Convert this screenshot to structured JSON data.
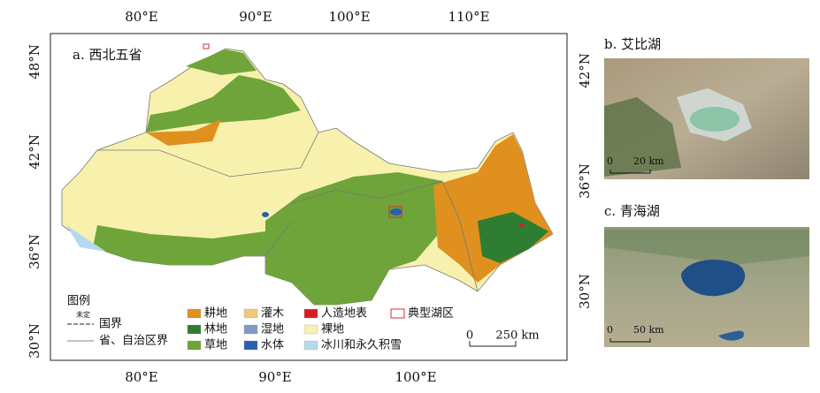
{
  "panel_a": {
    "title": "a. 西北五省",
    "top_labels": [
      "80°E",
      "90°E",
      "100°E",
      "110°E"
    ],
    "bottom_labels": [
      "80°E",
      "90°E",
      "100°E"
    ],
    "left_labels": [
      "48°N",
      "42°N",
      "36°N",
      "30°N"
    ],
    "right_labels": [
      "42°N",
      "36°N",
      "30°N"
    ],
    "legend": {
      "title": "图例",
      "boundary_note": "未定",
      "boundaries": [
        "国界",
        "省、自治区界"
      ],
      "classes": [
        {
          "label": "耕地",
          "color": "#e0901e"
        },
        {
          "label": "林地",
          "color": "#2e7d32"
        },
        {
          "label": "草地",
          "color": "#6fa43a"
        },
        {
          "label": "灌木",
          "color": "#f2c777"
        },
        {
          "label": "湿地",
          "color": "#7f99c9"
        },
        {
          "label": "水体",
          "color": "#2a5fb0"
        },
        {
          "label": "人造地表",
          "color": "#d71e1e"
        },
        {
          "label": "裸地",
          "color": "#f7f1ad"
        },
        {
          "label": "冰川和永久积雪",
          "color": "#b7d9ee"
        }
      ],
      "lake_zone": {
        "label": "典型湖区",
        "color": "#d32f2f"
      }
    },
    "scale": {
      "zero": "0",
      "label": "250 km"
    }
  },
  "panel_b": {
    "title": "b. 艾比湖",
    "scale": {
      "zero": "0",
      "label": "20 km"
    }
  },
  "panel_c": {
    "title": "c. 青海湖",
    "scale": {
      "zero": "0",
      "label": "50 km"
    }
  }
}
